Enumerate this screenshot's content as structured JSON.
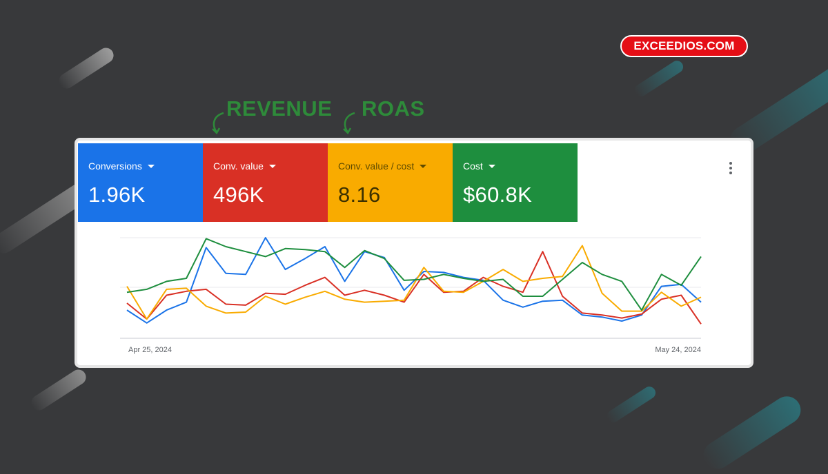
{
  "brand": {
    "label": "EXCEEDIOS.COM",
    "color": "#e50e16"
  },
  "annotations": [
    {
      "text": "REVENUE",
      "color": "#2e8b3a"
    },
    {
      "text": "ROAS",
      "color": "#2e8b3a"
    }
  ],
  "tiles": [
    {
      "label": "Conversions",
      "value": "1.96K",
      "color": "#1a73e8"
    },
    {
      "label": "Conv. value",
      "value": "496K",
      "color": "#d93025"
    },
    {
      "label": "Conv. value / cost",
      "value": "8.16",
      "color": "#f9ab00"
    },
    {
      "label": "Cost",
      "value": "$60.8K",
      "color": "#1e8e3e"
    }
  ],
  "more_menu": {
    "icon": "more-vert-icon"
  },
  "chart_data": {
    "type": "line",
    "x_start_label": "Apr 25, 2024",
    "x_end_label": "May 24, 2024",
    "x": [
      "Apr 25",
      "Apr 26",
      "Apr 27",
      "Apr 28",
      "Apr 29",
      "Apr 30",
      "May 1",
      "May 2",
      "May 3",
      "May 4",
      "May 5",
      "May 6",
      "May 7",
      "May 8",
      "May 9",
      "May 10",
      "May 11",
      "May 12",
      "May 13",
      "May 14",
      "May 15",
      "May 16",
      "May 17",
      "May 18",
      "May 19",
      "May 20",
      "May 21",
      "May 22",
      "May 23",
      "May 24"
    ],
    "y_range": [
      0,
      100
    ],
    "grid": true,
    "series": [
      {
        "color": "#1a73e8",
        "values": [
          27,
          14,
          27,
          35,
          90,
          64,
          63,
          100,
          68,
          79,
          91,
          56,
          86,
          80,
          47,
          66,
          65,
          60,
          57,
          37,
          30,
          36,
          37,
          22,
          20,
          16,
          22,
          51,
          53,
          35
        ]
      },
      {
        "color": "#d93025",
        "values": [
          34,
          18,
          42,
          46,
          48,
          33,
          32,
          44,
          43,
          52,
          60,
          42,
          47,
          42,
          35,
          63,
          45,
          46,
          60,
          51,
          45,
          86,
          41,
          24,
          22,
          19,
          23,
          38,
          42,
          13
        ]
      },
      {
        "color": "#f9ab00",
        "values": [
          51,
          18,
          48,
          49,
          31,
          24,
          25,
          41,
          33,
          40,
          46,
          38,
          35,
          36,
          37,
          70,
          46,
          45,
          56,
          68,
          56,
          59,
          61,
          92,
          44,
          26,
          26,
          45,
          31,
          40
        ]
      },
      {
        "color": "#1e8e3e",
        "values": [
          45,
          48,
          56,
          59,
          99,
          91,
          86,
          81,
          89,
          88,
          86,
          70,
          87,
          79,
          57,
          58,
          63,
          59,
          56,
          58,
          41,
          41,
          58,
          75,
          63,
          56,
          27,
          63,
          52,
          81
        ]
      }
    ]
  }
}
